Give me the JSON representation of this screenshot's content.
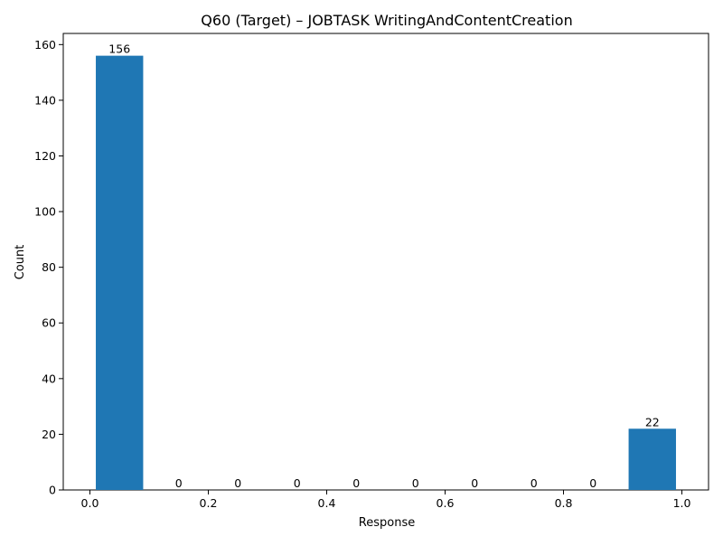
{
  "chart_data": {
    "type": "bar",
    "title": "Q60 (Target) – JOBTASK WritingAndContentCreation",
    "xlabel": "Response",
    "ylabel": "Count",
    "xlim": [
      -0.045,
      1.045
    ],
    "ylim": [
      0,
      164
    ],
    "bin_width": 0.08,
    "bins": [
      {
        "x": 0.05,
        "value": 156,
        "label": "156"
      },
      {
        "x": 0.15,
        "value": 0,
        "label": "0"
      },
      {
        "x": 0.25,
        "value": 0,
        "label": "0"
      },
      {
        "x": 0.35,
        "value": 0,
        "label": "0"
      },
      {
        "x": 0.45,
        "value": 0,
        "label": "0"
      },
      {
        "x": 0.55,
        "value": 0,
        "label": "0"
      },
      {
        "x": 0.65,
        "value": 0,
        "label": "0"
      },
      {
        "x": 0.75,
        "value": 0,
        "label": "0"
      },
      {
        "x": 0.85,
        "value": 0,
        "label": "0"
      },
      {
        "x": 0.95,
        "value": 22,
        "label": "22"
      }
    ],
    "xticks": [
      {
        "value": 0.0,
        "label": "0.0"
      },
      {
        "value": 0.2,
        "label": "0.2"
      },
      {
        "value": 0.4,
        "label": "0.4"
      },
      {
        "value": 0.6,
        "label": "0.6"
      },
      {
        "value": 0.8,
        "label": "0.8"
      },
      {
        "value": 1.0,
        "label": "1.0"
      }
    ],
    "yticks": [
      {
        "value": 0,
        "label": "0"
      },
      {
        "value": 20,
        "label": "20"
      },
      {
        "value": 40,
        "label": "40"
      },
      {
        "value": 60,
        "label": "60"
      },
      {
        "value": 80,
        "label": "80"
      },
      {
        "value": 100,
        "label": "100"
      },
      {
        "value": 120,
        "label": "120"
      },
      {
        "value": 140,
        "label": "140"
      },
      {
        "value": 160,
        "label": "160"
      }
    ],
    "grid": false,
    "legend": "none",
    "colors": {
      "bar": "#1f77b4",
      "axis": "#000000",
      "background": "#ffffff"
    }
  }
}
